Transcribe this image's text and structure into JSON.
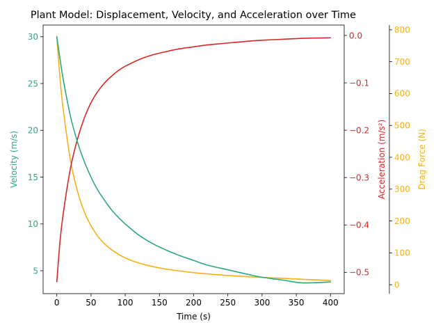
{
  "chart_data": {
    "type": "line",
    "title": "Plant Model: Displacement, Velocity, and Acceleration over Time",
    "xlabel": "Time (s)",
    "x_ticks": [
      0,
      50,
      100,
      150,
      200,
      250,
      300,
      350,
      400
    ],
    "xlim": [
      -20,
      420
    ],
    "grid": false,
    "legend": "none",
    "x": [
      0,
      5,
      10,
      20,
      30,
      40,
      50,
      60,
      70,
      80,
      90,
      100,
      120,
      140,
      160,
      180,
      200,
      220,
      250,
      280,
      300,
      330,
      360,
      400
    ],
    "axes": [
      {
        "id": "velocity",
        "side": "left",
        "label": "Velocity (m/s)",
        "color": "#2ca87f",
        "ylim": [
          2.55,
          31.25
        ],
        "ticks": [
          5,
          10,
          15,
          20,
          25,
          30
        ],
        "values": [
          30.0,
          27.5,
          25.2,
          21.5,
          18.8,
          16.7,
          15.0,
          13.6,
          12.5,
          11.5,
          10.7,
          10.0,
          8.8,
          7.9,
          7.2,
          6.6,
          6.1,
          5.6,
          5.1,
          4.6,
          4.3,
          4.0,
          3.7,
          3.8
        ]
      },
      {
        "id": "acceleration",
        "side": "right",
        "label": "Acceleration (m/s²)",
        "color": "#d62728",
        "ylim": [
          -0.545,
          0.022
        ],
        "ticks": [
          -0.5,
          -0.4,
          -0.3,
          -0.2,
          -0.1,
          0.0
        ],
        "tick_labels": [
          "−0.5",
          "−0.4",
          "−0.3",
          "−0.2",
          "−0.1",
          "0.0"
        ],
        "values": [
          -0.52,
          -0.43,
          -0.37,
          -0.28,
          -0.22,
          -0.175,
          -0.142,
          -0.118,
          -0.1,
          -0.086,
          -0.074,
          -0.065,
          -0.051,
          -0.041,
          -0.034,
          -0.028,
          -0.024,
          -0.02,
          -0.016,
          -0.012,
          -0.01,
          -0.008,
          -0.006,
          -0.005
        ]
      },
      {
        "id": "drag",
        "side": "right-outer",
        "label": "Drag Force (N)",
        "color": "#f5b014",
        "ylim": [
          -28,
          815
        ],
        "ticks": [
          0,
          100,
          200,
          300,
          400,
          500,
          600,
          700,
          800
        ],
        "values": [
          780,
          640,
          540,
          390,
          295,
          230,
          185,
          152,
          128,
          110,
          96,
          84,
          68,
          57,
          49,
          43,
          38,
          34,
          29,
          25,
          23,
          20,
          17,
          13
        ]
      }
    ]
  }
}
